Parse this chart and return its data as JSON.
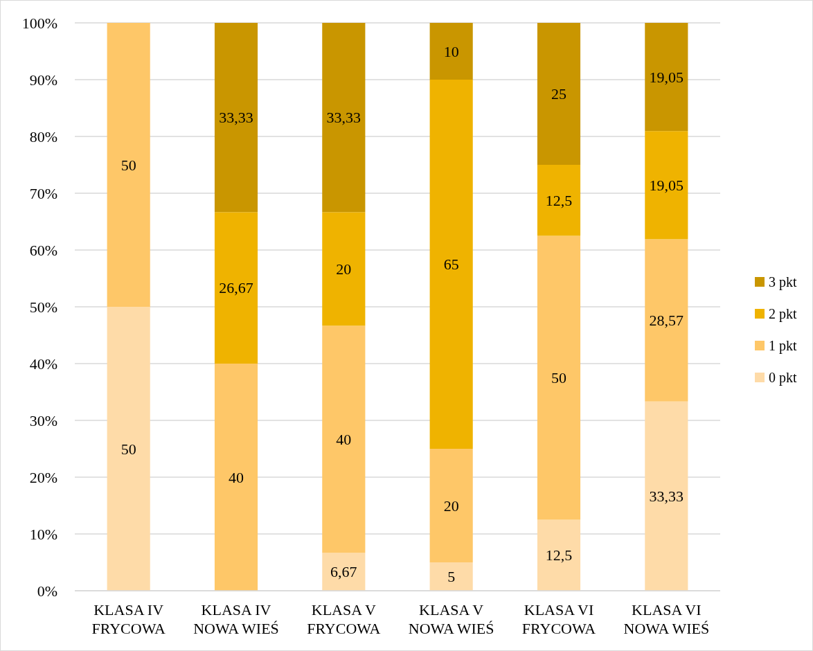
{
  "chart_data": {
    "type": "bar",
    "stacked": true,
    "categories": [
      "KLASA IV\nFRYCOWA",
      "KLASA IV\nNOWA WIEŚ",
      "KLASA V\nFRYCOWA",
      "KLASA V\nNOWA WIEŚ",
      "KLASA VI\nFRYCOWA",
      "KLASA VI\nNOWA WIEŚ"
    ],
    "series": [
      {
        "name": "0 pkt",
        "color": "#fedba8",
        "values": [
          50,
          null,
          6.67,
          5,
          12.5,
          33.33
        ],
        "value_labels": [
          "50",
          null,
          "6,67",
          "5",
          "12,5",
          "33,33"
        ]
      },
      {
        "name": "1 pkt",
        "color": "#fec768",
        "values": [
          50,
          40,
          40,
          20,
          50,
          28.57
        ],
        "value_labels": [
          "50",
          "40",
          "40",
          "20",
          "50",
          "28,57"
        ]
      },
      {
        "name": "2 pkt",
        "color": "#efb300",
        "values": [
          null,
          26.67,
          20,
          65,
          12.5,
          19.05
        ],
        "value_labels": [
          null,
          "26,67",
          "20",
          "65",
          "12,5",
          "19,05"
        ]
      },
      {
        "name": "3 pkt",
        "color": "#c99600",
        "values": [
          null,
          33.33,
          33.33,
          10,
          25,
          19.05
        ],
        "value_labels": [
          null,
          "33,33",
          "33,33",
          "10",
          "25",
          "19,05"
        ]
      }
    ],
    "ylim": [
      0,
      100
    ],
    "yticks": [
      {
        "value": 0,
        "label": "0%"
      },
      {
        "value": 10,
        "label": "10%"
      },
      {
        "value": 20,
        "label": "20%"
      },
      {
        "value": 30,
        "label": "30%"
      },
      {
        "value": 40,
        "label": "40%"
      },
      {
        "value": 50,
        "label": "50%"
      },
      {
        "value": 60,
        "label": "60%"
      },
      {
        "value": 70,
        "label": "70%"
      },
      {
        "value": 80,
        "label": "80%"
      },
      {
        "value": 90,
        "label": "90%"
      },
      {
        "value": 100,
        "label": "100%"
      }
    ],
    "grid": "y",
    "legend": "right"
  }
}
